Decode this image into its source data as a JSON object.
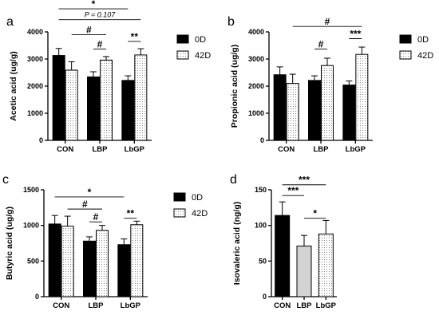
{
  "colors": {
    "black_bar": "#000000",
    "dotted_bar_fill": "#ffffff",
    "dot": "#666666",
    "grey_bar": "#d3d3d3"
  },
  "chart_data": [
    {
      "panel": "a",
      "type": "bar",
      "ylabel": "Acetic acid (ug/g)",
      "ylim": [
        0,
        4000
      ],
      "yticks": [
        0,
        1000,
        2000,
        3000,
        4000
      ],
      "categories": [
        "CON",
        "LBP",
        "LbGP"
      ],
      "legend_position": "right",
      "series": [
        {
          "name": "0D",
          "values": [
            3130,
            2340,
            2210
          ],
          "errors": [
            260,
            190,
            170
          ],
          "style": "black"
        },
        {
          "name": "42D",
          "values": [
            2590,
            2960,
            3150
          ],
          "errors": [
            310,
            130,
            230
          ],
          "style": "dotted"
        }
      ],
      "annotations": [
        {
          "label": "*",
          "from": [
            0,
            0
          ],
          "to": [
            2,
            0
          ],
          "level": 4850
        },
        {
          "label": "P = 0.107",
          "from": [
            0,
            0
          ],
          "to": [
            2,
            1
          ],
          "level": 4450
        },
        {
          "label": "#",
          "from": [
            0,
            1
          ],
          "to": [
            1,
            1
          ],
          "level": 3900
        },
        {
          "label": "#",
          "from": [
            1,
            0
          ],
          "to": [
            1,
            1
          ],
          "level": 3370
        },
        {
          "label": "**",
          "from": [
            2,
            0
          ],
          "to": [
            2,
            1
          ],
          "level": 3650
        }
      ]
    },
    {
      "panel": "b",
      "type": "bar",
      "ylabel": "Propionic acid (ug/g)",
      "ylim": [
        0,
        4000
      ],
      "yticks": [
        0,
        1000,
        2000,
        3000,
        4000
      ],
      "categories": [
        "CON",
        "LBP",
        "LbGP"
      ],
      "legend_position": "right",
      "series": [
        {
          "name": "0D",
          "values": [
            2420,
            2210,
            2040
          ],
          "errors": [
            290,
            170,
            150
          ],
          "style": "black"
        },
        {
          "name": "42D",
          "values": [
            2100,
            2760,
            3170
          ],
          "errors": [
            340,
            270,
            270
          ],
          "style": "dotted"
        }
      ],
      "annotations": [
        {
          "label": "#",
          "from": [
            0,
            1
          ],
          "to": [
            2,
            1
          ],
          "level": 4200
        },
        {
          "label": "#",
          "from": [
            1,
            0
          ],
          "to": [
            1,
            1
          ],
          "level": 3370
        },
        {
          "label": "***",
          "from": [
            2,
            0
          ],
          "to": [
            2,
            1
          ],
          "level": 3750
        }
      ]
    },
    {
      "panel": "c",
      "type": "bar",
      "ylabel": "Butyric acid (ug/g)",
      "ylim": [
        0,
        1500
      ],
      "yticks": [
        0,
        500,
        1000,
        1500
      ],
      "categories": [
        "CON",
        "LBP",
        "LbGP"
      ],
      "legend_position": "right",
      "series": [
        {
          "name": "0D",
          "values": [
            1020,
            780,
            730
          ],
          "errors": [
            120,
            60,
            80
          ],
          "style": "black"
        },
        {
          "name": "42D",
          "values": [
            990,
            930,
            1010
          ],
          "errors": [
            140,
            70,
            50
          ],
          "style": "dotted"
        }
      ],
      "annotations": [
        {
          "label": "*",
          "from": [
            0,
            0
          ],
          "to": [
            2,
            0
          ],
          "level": 1400
        },
        {
          "label": "#",
          "from": [
            0,
            1
          ],
          "to": [
            1,
            1
          ],
          "level": 1230
        },
        {
          "label": "#",
          "from": [
            1,
            0
          ],
          "to": [
            1,
            1
          ],
          "level": 1050
        },
        {
          "label": "**",
          "from": [
            2,
            0
          ],
          "to": [
            2,
            1
          ],
          "level": 1100
        }
      ]
    },
    {
      "panel": "d",
      "type": "bar",
      "ylabel": "Isovaleric acid (ng/g)",
      "ylim": [
        0,
        150
      ],
      "yticks": [
        0,
        50,
        100,
        150
      ],
      "categories": [
        "CON",
        "LBP",
        "LbGP"
      ],
      "series": [
        {
          "name": "",
          "values": [
            114,
            71,
            88
          ],
          "errors": [
            19,
            15,
            19
          ],
          "styles": [
            "black",
            "grey",
            "dotted"
          ]
        }
      ],
      "annotations": [
        {
          "label": "***",
          "from": [
            0,
            0
          ],
          "to": [
            2,
            0
          ],
          "level": 157
        },
        {
          "label": "***",
          "from": [
            0,
            0
          ],
          "to": [
            1,
            0
          ],
          "level": 142
        },
        {
          "label": "*",
          "from": [
            1,
            0
          ],
          "to": [
            2,
            0
          ],
          "level": 110
        }
      ]
    }
  ]
}
